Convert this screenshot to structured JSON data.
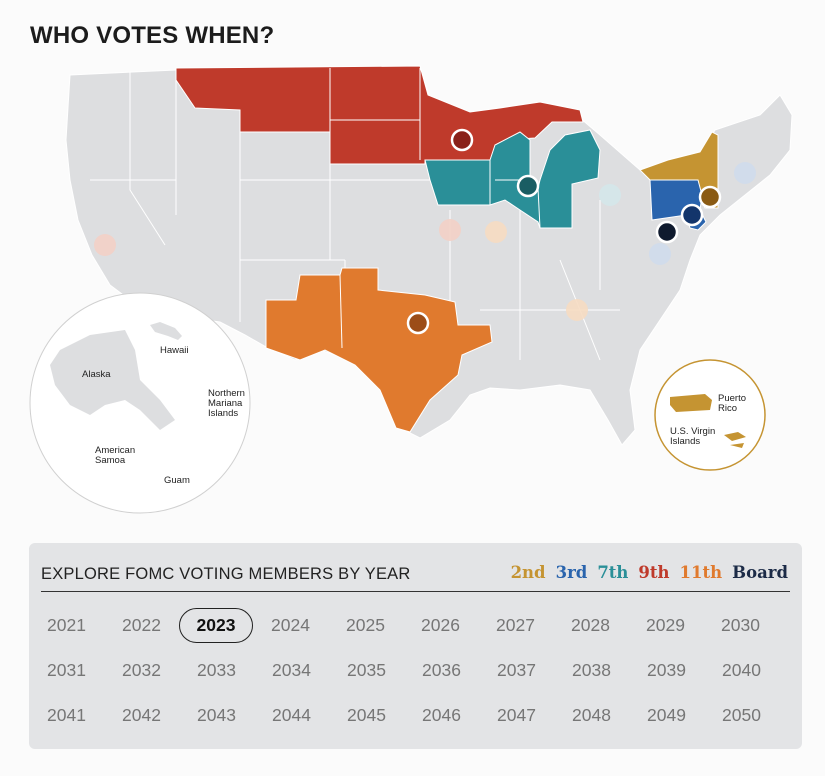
{
  "title": "WHO VOTES WHEN?",
  "map": {
    "inset_labels": {
      "alaska": "Alaska",
      "hawaii": "Hawaii",
      "northern_mariana_1": "Northern",
      "northern_mariana_2": "Mariana",
      "northern_mariana_3": "Islands",
      "american_samoa_1": "American",
      "american_samoa_2": "Samoa",
      "guam": "Guam",
      "puerto_rico_1": "Puerto",
      "puerto_rico_2": "Rico",
      "usvi_1": "U.S. Virgin",
      "usvi_2": "Islands"
    },
    "district_colors": {
      "2nd": "#c59432",
      "3rd": "#2a64ad",
      "7th": "#2a8f98",
      "9th": "#bf3a2b",
      "11th": "#e07a2e",
      "Board": "#1c2b47",
      "inactive": "#dddee0"
    },
    "voting_year": "2023",
    "voting_districts": [
      "9th (Minneapolis)",
      "7th (Chicago)",
      "2nd (New York)",
      "3rd (Philadelphia)",
      "11th (Dallas)",
      "Board (Washington)"
    ]
  },
  "panel": {
    "title": "EXPLORE FOMC VOTING MEMBERS BY YEAR",
    "legend": [
      {
        "label": "2nd",
        "color": "#c59432"
      },
      {
        "label": "3rd",
        "color": "#2a64ad"
      },
      {
        "label": "7th",
        "color": "#2a8f98"
      },
      {
        "label": "9th",
        "color": "#bf3a2b"
      },
      {
        "label": "11th",
        "color": "#e07a2e"
      },
      {
        "label": "Board",
        "color": "#1c2b47"
      }
    ],
    "selected_year": "2023",
    "years": [
      [
        "2021",
        "2022",
        "2023",
        "2024",
        "2025",
        "2026",
        "2027",
        "2028",
        "2029",
        "2030"
      ],
      [
        "2031",
        "2032",
        "2033",
        "2034",
        "2035",
        "2036",
        "2037",
        "2038",
        "2039",
        "2040"
      ],
      [
        "2041",
        "2042",
        "2043",
        "2044",
        "2045",
        "2046",
        "2047",
        "2048",
        "2049",
        "2050"
      ]
    ]
  }
}
